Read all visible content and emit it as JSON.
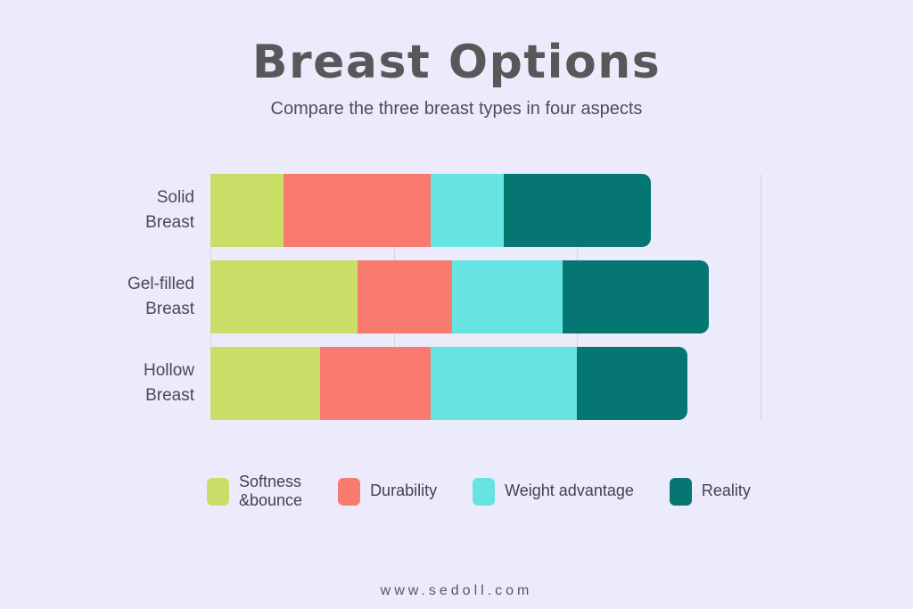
{
  "page": {
    "title": "Breast Options",
    "subtitle": "Compare the three breast types in four aspects",
    "footer": "www.sedoll.com",
    "background_color": "#ecebfb",
    "title_color": "#58585b"
  },
  "chart_data": {
    "type": "bar",
    "orientation": "horizontal",
    "stacked": true,
    "title": "Breast Options",
    "subtitle": "Compare the three breast types in four aspects",
    "categories": [
      "Solid Breast",
      "Gel-filled Breast",
      "Hollow Breast"
    ],
    "category_label_lines": [
      [
        "Solid",
        "Breast"
      ],
      [
        "Gel-filled",
        "Breast"
      ],
      [
        "Hollow",
        "Breast"
      ]
    ],
    "series": [
      {
        "name": "Softness &bounce",
        "color": "#c9de66",
        "values": [
          2,
          4,
          3
        ]
      },
      {
        "name": "Durability",
        "color": "#f97b70",
        "values": [
          4,
          2.6,
          3
        ]
      },
      {
        "name": "Weight advantage",
        "color": "#67e3e1",
        "values": [
          2,
          3,
          4
        ]
      },
      {
        "name": "Reality",
        "color": "#057672",
        "values": [
          4,
          4,
          3
        ]
      }
    ],
    "legend_label_lines": [
      [
        "Softness",
        "&bounce"
      ],
      [
        "Durability"
      ],
      [
        "Weight advantage"
      ],
      [
        "Reality"
      ]
    ],
    "xlim": [
      0,
      15
    ],
    "gridlines_x": [
      0,
      5,
      10,
      15
    ],
    "grid_color": "#d6d5e2",
    "tick_labels_shown": false,
    "legend_position": "bottom"
  }
}
